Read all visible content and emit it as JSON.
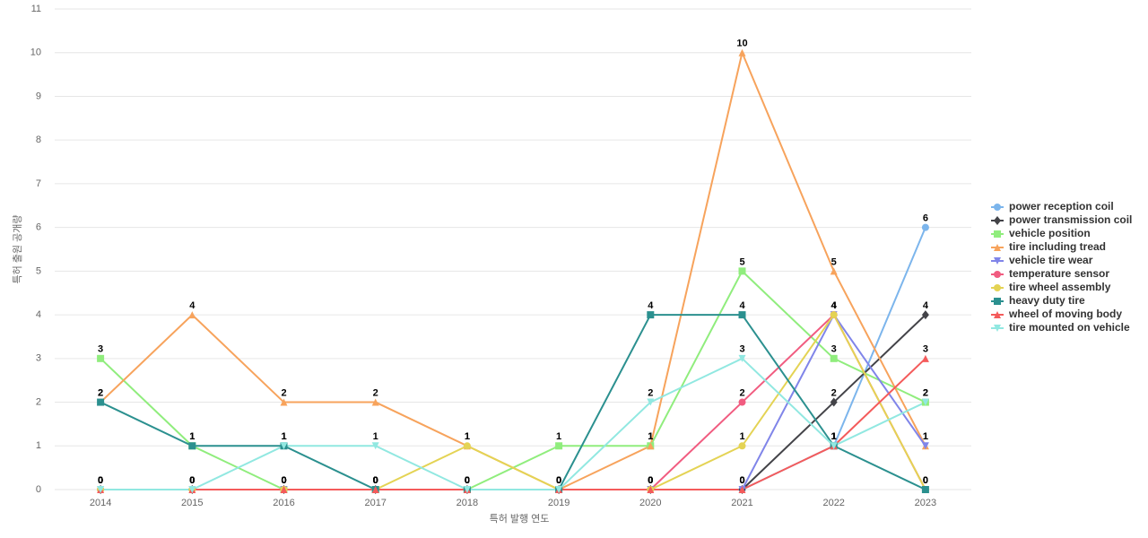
{
  "chart_data": {
    "type": "line",
    "x_label": "특허 발행 연도",
    "y_label": "특허 출원 공개량",
    "categories": [
      "2014",
      "2015",
      "2016",
      "2017",
      "2018",
      "2019",
      "2020",
      "2021",
      "2022",
      "2023"
    ],
    "ylim": [
      0,
      11
    ],
    "yticks": [
      0,
      1,
      2,
      3,
      4,
      5,
      6,
      7,
      8,
      9,
      10,
      11
    ],
    "grid": true,
    "legend": "right",
    "series": [
      {
        "name": "power reception coil",
        "color": "#7cb5ec",
        "marker": "circle",
        "values": [
          0,
          0,
          0,
          0,
          0,
          0,
          0,
          0,
          1,
          6
        ]
      },
      {
        "name": "power transmission coil",
        "color": "#434348",
        "marker": "diamond",
        "values": [
          0,
          0,
          0,
          0,
          0,
          0,
          0,
          0,
          2,
          4
        ]
      },
      {
        "name": "vehicle position",
        "color": "#90ed7d",
        "marker": "square",
        "values": [
          3,
          1,
          0,
          0,
          0,
          1,
          1,
          5,
          3,
          2
        ]
      },
      {
        "name": "tire including tread",
        "color": "#f7a35c",
        "marker": "triangle",
        "values": [
          2,
          4,
          2,
          2,
          1,
          0,
          1,
          10,
          5,
          1
        ]
      },
      {
        "name": "vehicle tire wear",
        "color": "#8085e9",
        "marker": "triangle-down",
        "values": [
          0,
          0,
          0,
          0,
          0,
          0,
          0,
          0,
          4,
          1
        ]
      },
      {
        "name": "temperature sensor",
        "color": "#f15c80",
        "marker": "circle",
        "values": [
          0,
          0,
          0,
          0,
          0,
          0,
          0,
          2,
          4,
          0
        ]
      },
      {
        "name": "tire wheel assembly",
        "color": "#e4d354",
        "marker": "circle",
        "values": [
          0,
          0,
          0,
          0,
          1,
          0,
          0,
          1,
          4,
          0
        ]
      },
      {
        "name": "heavy duty tire",
        "color": "#2b908f",
        "marker": "square",
        "values": [
          2,
          1,
          1,
          0,
          0,
          0,
          4,
          4,
          1,
          0
        ]
      },
      {
        "name": "wheel of moving body",
        "color": "#f45b5b",
        "marker": "triangle",
        "values": [
          0,
          0,
          0,
          0,
          0,
          0,
          0,
          0,
          1,
          3
        ]
      },
      {
        "name": "tire mounted on vehicle",
        "color": "#91e8e1",
        "marker": "triangle-down",
        "values": [
          0,
          0,
          1,
          1,
          0,
          0,
          2,
          3,
          1,
          2
        ]
      }
    ]
  }
}
